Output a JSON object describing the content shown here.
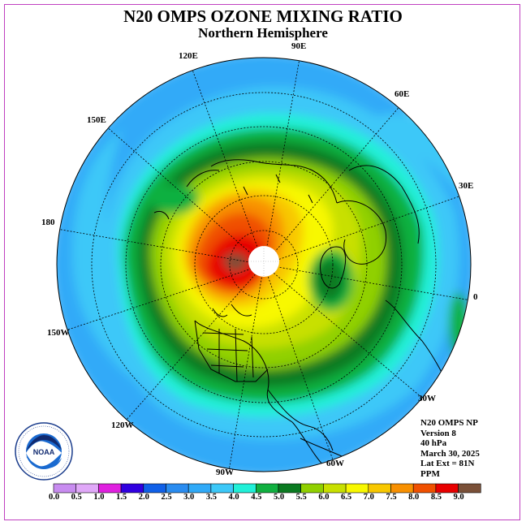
{
  "header": {
    "title": "N20 OMPS OZONE MIXING RATIO",
    "subtitle": "Northern Hemisphere"
  },
  "map_labels": {
    "lon_120e": "120E",
    "lon_90e": "90E",
    "lon_60e": "60E",
    "lon_150e": "150E",
    "lon_30e": "30E",
    "lon_180": "180",
    "lon_0": "0",
    "lon_150w": "150W",
    "lon_30w": "30W",
    "lon_120w": "120W",
    "lon_60w": "60W",
    "lon_90w": "90W"
  },
  "info": {
    "line1": "N20 OMPS NP",
    "line2": "Version 8",
    "line3": "40 hPa",
    "line4": "March 30, 2025",
    "line5": "Lat Ext = 81N",
    "line6": "PPM"
  },
  "colorbar": {
    "ticks": [
      "0.0",
      "0.5",
      "1.0",
      "1.5",
      "2.0",
      "2.5",
      "3.0",
      "3.5",
      "4.0",
      "4.5",
      "5.0",
      "5.5",
      "6.0",
      "6.5",
      "7.0",
      "7.5",
      "8.0",
      "8.5",
      "9.0"
    ],
    "colors": [
      "#c88cf0",
      "#e0a8f8",
      "#e020e0",
      "#3000e0",
      "#1060e8",
      "#2a8cf0",
      "#30aaf8",
      "#3cc8f8",
      "#20f0d8",
      "#10b040",
      "#0a7a20",
      "#90d000",
      "#c8e000",
      "#f8f800",
      "#f8c800",
      "#f89000",
      "#f05000",
      "#e80000",
      "#7a5038"
    ]
  },
  "logo": {
    "text": "NOAA"
  }
}
